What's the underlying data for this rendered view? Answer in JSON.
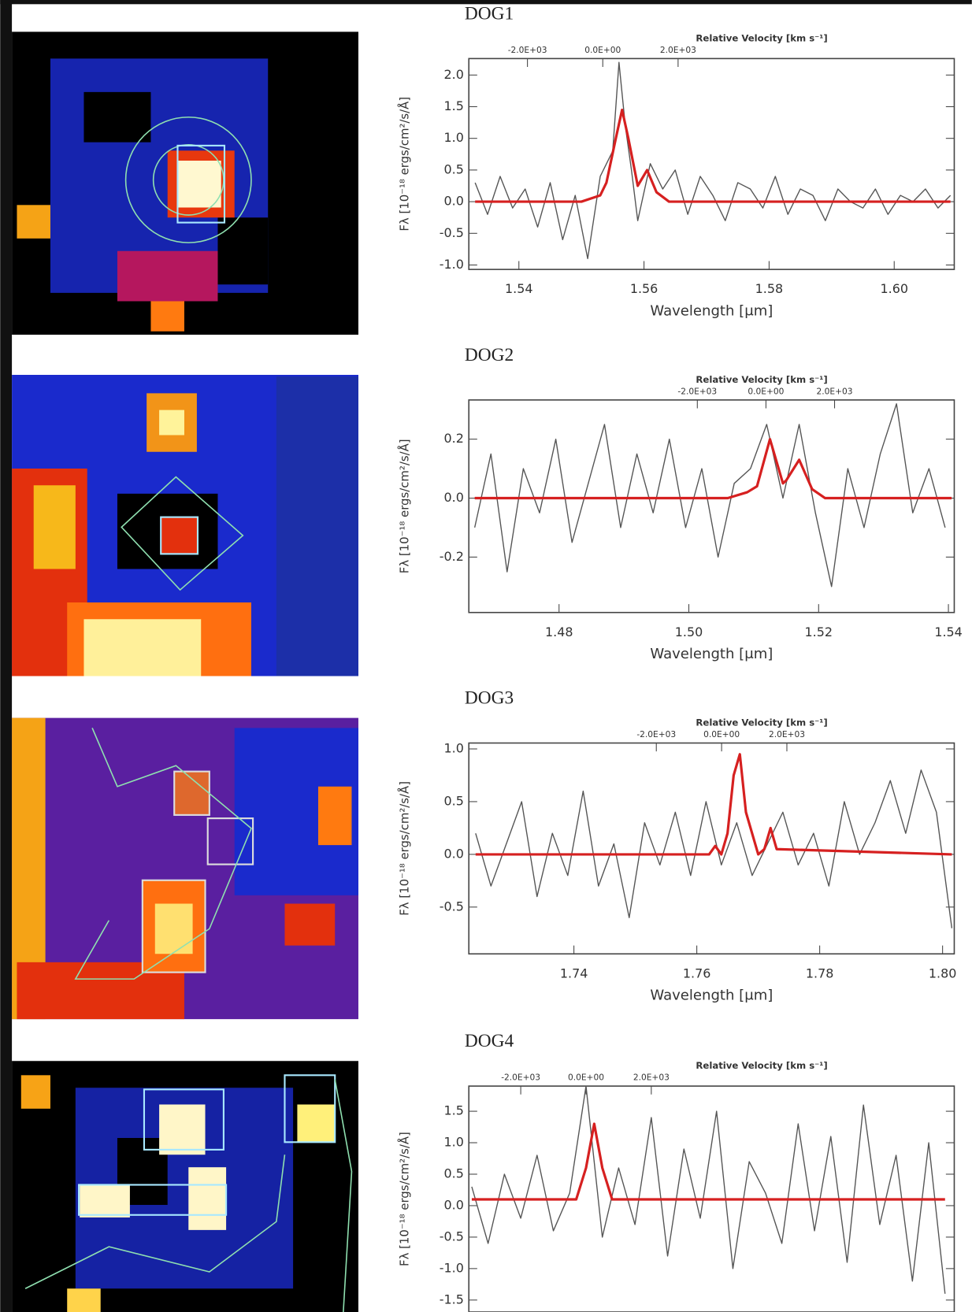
{
  "chart_data": [
    {
      "type": "line",
      "title": "DOG1",
      "top_axis_label": "Relative Velocity [km s⁻¹]",
      "xlabel": "Wavelength [μm]",
      "ylabel": "Fλ [10⁻¹⁸ ergs/cm²/s/Å]",
      "xlim": [
        1.532,
        1.6096
      ],
      "xticks": [
        1.54,
        1.56,
        1.58,
        {
          "value": 1.6,
          "label": "1.60"
        }
      ],
      "x2lim": [
        -3556,
        9333
      ],
      "x2ticks": [
        {
          "value": -2000,
          "label": "-2.0E+03"
        },
        {
          "value": 0,
          "label": "0.0E+00"
        },
        {
          "value": 2000,
          "label": "2.0E+03"
        }
      ],
      "ylim": [
        -1.07,
        2.26
      ],
      "yticks": [
        {
          "value": -1,
          "label": "-1.0"
        },
        -0.5,
        {
          "value": 0,
          "label": "0.0"
        },
        0.5,
        {
          "value": 1,
          "label": "1.0"
        },
        1.5,
        {
          "value": 2,
          "label": "2.0"
        }
      ],
      "series": [
        {
          "color": "#555555",
          "x": [
            1.533,
            1.535,
            1.537,
            1.539,
            1.541,
            1.543,
            1.545,
            1.547,
            1.549,
            1.551,
            1.553,
            1.555,
            1.556,
            1.557,
            1.558,
            1.559,
            1.561,
            1.563,
            1.565,
            1.567,
            1.569,
            1.571,
            1.573,
            1.575,
            1.577,
            1.579,
            1.581,
            1.583,
            1.585,
            1.587,
            1.589,
            1.591,
            1.593,
            1.595,
            1.597,
            1.599,
            1.601,
            1.603,
            1.605,
            1.607,
            1.609
          ],
          "values": [
            0.3,
            -0.2,
            0.4,
            -0.1,
            0.2,
            -0.4,
            0.3,
            -0.6,
            0.1,
            -0.9,
            0.4,
            0.8,
            2.2,
            1.2,
            0.5,
            -0.3,
            0.6,
            0.2,
            0.5,
            -0.2,
            0.4,
            0.1,
            -0.3,
            0.3,
            0.2,
            -0.1,
            0.4,
            -0.2,
            0.2,
            0.1,
            -0.3,
            0.2,
            0.0,
            -0.1,
            0.2,
            -0.2,
            0.1,
            0.0,
            0.2,
            -0.1,
            0.1
          ]
        },
        {
          "color": "#d62020",
          "x": [
            1.533,
            1.55,
            1.553,
            1.554,
            1.5555,
            1.5565,
            1.5575,
            1.559,
            1.5605,
            1.562,
            1.564,
            1.609
          ],
          "values": [
            0.0,
            0.0,
            0.1,
            0.3,
            1.0,
            1.45,
            1.0,
            0.25,
            0.5,
            0.15,
            0.0,
            0.0
          ]
        }
      ]
    },
    {
      "type": "line",
      "title": "DOG2",
      "top_axis_label": "Relative Velocity [km s⁻¹]",
      "xlabel": "Wavelength [μm]",
      "ylabel": "Fλ [10⁻¹⁸ ergs/cm²/s/Å]",
      "xlim": [
        1.4661,
        1.5409
      ],
      "xticks": [
        1.48,
        {
          "value": 1.5,
          "label": "1.50"
        },
        1.52,
        1.54
      ],
      "x2lim": [
        -8659,
        5488
      ],
      "x2ticks": [
        {
          "value": -2000,
          "label": "-2.0E+03"
        },
        {
          "value": 0,
          "label": "0.0E+00"
        },
        {
          "value": 2000,
          "label": "2.0E+03"
        }
      ],
      "ylim": [
        -0.388,
        0.333
      ],
      "yticks": [
        -0.2,
        {
          "value": 0,
          "label": "0.0"
        },
        0.2
      ],
      "series": [
        {
          "color": "#555555",
          "x": [
            1.467,
            1.4695,
            1.472,
            1.4745,
            1.477,
            1.4795,
            1.482,
            1.4845,
            1.487,
            1.4895,
            1.492,
            1.4945,
            1.497,
            1.4995,
            1.502,
            1.5045,
            1.507,
            1.5095,
            1.512,
            1.5145,
            1.517,
            1.5195,
            1.522,
            1.5245,
            1.527,
            1.5295,
            1.532,
            1.5345,
            1.537,
            1.5395
          ],
          "values": [
            -0.1,
            0.15,
            -0.25,
            0.1,
            -0.05,
            0.2,
            -0.15,
            0.05,
            0.25,
            -0.1,
            0.15,
            -0.05,
            0.2,
            -0.1,
            0.1,
            -0.2,
            0.05,
            0.1,
            0.25,
            0.0,
            0.25,
            -0.05,
            -0.3,
            0.1,
            -0.1,
            0.15,
            0.32,
            -0.05,
            0.1,
            -0.1
          ]
        },
        {
          "color": "#d62020",
          "x": [
            1.467,
            1.506,
            1.509,
            1.5105,
            1.5125,
            1.5145,
            1.515,
            1.517,
            1.519,
            1.521,
            1.5405
          ],
          "values": [
            0,
            0,
            0.02,
            0.04,
            0.2,
            0.05,
            0.06,
            0.13,
            0.03,
            0,
            0
          ]
        }
      ]
    },
    {
      "type": "line",
      "title": "DOG3",
      "top_axis_label": "Relative Velocity [km s⁻¹]",
      "xlabel": "Wavelength [μm]",
      "ylabel": "Fλ [10⁻¹⁸ ergs/cm²/s/Å]",
      "xlim": [
        1.7229,
        1.8019
      ],
      "xticks": [
        1.74,
        1.76,
        1.78,
        {
          "value": 1.8,
          "label": "1.80"
        }
      ],
      "x2lim": [
        -7744,
        7128
      ],
      "x2ticks": [
        {
          "value": -2000,
          "label": "-2.0E+03"
        },
        {
          "value": 0,
          "label": "0.0E+00"
        },
        {
          "value": 2000,
          "label": "2.0E+03"
        }
      ],
      "ylim": [
        -0.944,
        1.056
      ],
      "yticks": [
        -0.5,
        {
          "value": 0,
          "label": "0.0"
        },
        0.5,
        {
          "value": 1,
          "label": "1.0"
        }
      ],
      "series": [
        {
          "color": "#555555",
          "x": [
            1.724,
            1.7265,
            1.729,
            1.7315,
            1.734,
            1.7365,
            1.739,
            1.7415,
            1.744,
            1.7465,
            1.749,
            1.7515,
            1.754,
            1.7565,
            1.759,
            1.7615,
            1.764,
            1.7665,
            1.769,
            1.7715,
            1.774,
            1.7765,
            1.779,
            1.7815,
            1.784,
            1.7865,
            1.789,
            1.7915,
            1.794,
            1.7965,
            1.799,
            1.8015
          ],
          "values": [
            0.2,
            -0.3,
            0.1,
            0.5,
            -0.4,
            0.2,
            -0.2,
            0.6,
            -0.3,
            0.1,
            -0.6,
            0.3,
            -0.1,
            0.4,
            -0.2,
            0.5,
            -0.1,
            0.3,
            -0.2,
            0.1,
            0.4,
            -0.1,
            0.2,
            -0.3,
            0.5,
            0.0,
            0.3,
            0.7,
            0.2,
            0.8,
            0.4,
            -0.7
          ]
        },
        {
          "color": "#d62020",
          "x": [
            1.724,
            1.762,
            1.763,
            1.764,
            1.765,
            1.766,
            1.767,
            1.768,
            1.77,
            1.771,
            1.772,
            1.773,
            1.8015
          ],
          "values": [
            0,
            0,
            0.08,
            0,
            0.2,
            0.75,
            0.95,
            0.4,
            0,
            0.05,
            0.25,
            0.05,
            0
          ]
        }
      ]
    },
    {
      "type": "line",
      "title": "DOG4",
      "top_axis_label": "Relative Velocity [km s⁻¹]",
      "ylabel": "Fλ [10⁻¹⁸ ergs/cm²/s/Å]",
      "x2lim": [
        -3590,
        11282
      ],
      "x2ticks": [
        {
          "value": -2000,
          "label": "-2.0E+03"
        },
        {
          "value": 0,
          "label": "0.0E+00"
        },
        {
          "value": 2000,
          "label": "2.0E+03"
        }
      ],
      "ylim": [
        -1.69,
        1.9
      ],
      "yticks": [
        -1.5,
        {
          "value": -1,
          "label": "-1.0"
        },
        -0.5,
        {
          "value": 0,
          "label": "0.0"
        },
        0.5,
        {
          "value": 1,
          "label": "1.0"
        },
        1.5
      ],
      "series": [
        {
          "color": "#555555",
          "x": [
            -3500,
            -3000,
            -2500,
            -2000,
            -1500,
            -1000,
            -500,
            0,
            500,
            1000,
            1500,
            2000,
            2500,
            3000,
            3500,
            4000,
            4500,
            5000,
            5500,
            6000,
            6500,
            7000,
            7500,
            8000,
            8500,
            9000,
            9500,
            10000,
            10500,
            11000
          ],
          "values": [
            0.3,
            -0.6,
            0.5,
            -0.2,
            0.8,
            -0.4,
            0.2,
            1.9,
            -0.5,
            0.6,
            -0.3,
            1.4,
            -0.8,
            0.9,
            -0.2,
            1.5,
            -1.0,
            0.7,
            0.2,
            -0.6,
            1.3,
            -0.4,
            1.1,
            -0.9,
            1.6,
            -0.3,
            0.8,
            -1.2,
            1.0,
            -1.4
          ]
        },
        {
          "color": "#d62020",
          "x": [
            -3500,
            -300,
            0,
            250,
            500,
            800,
            11000
          ],
          "values": [
            0.1,
            0.1,
            0.6,
            1.3,
            0.6,
            0.1,
            0.1
          ]
        }
      ]
    }
  ]
}
